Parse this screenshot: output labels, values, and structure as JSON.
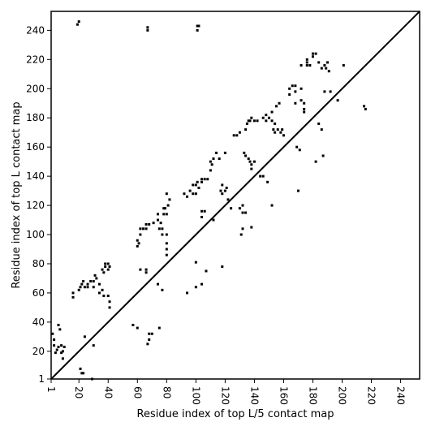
{
  "chart_data": {
    "type": "scatter",
    "title": "",
    "xlabel": "Residue index of top L/5 contact map",
    "ylabel": "Residue index of top L contact map",
    "xlim": [
      1,
      253
    ],
    "ylim": [
      1,
      253
    ],
    "xticks": [
      1,
      20,
      40,
      60,
      80,
      100,
      120,
      140,
      160,
      180,
      200,
      220,
      240
    ],
    "yticks": [
      1,
      20,
      40,
      60,
      80,
      100,
      120,
      140,
      160,
      180,
      200,
      220,
      240
    ],
    "diagonal": {
      "from": [
        1,
        1
      ],
      "to": [
        253,
        253
      ]
    },
    "grid": false,
    "series": [
      {
        "marker_color": "#000000",
        "points": [
          [
            19,
            244
          ],
          [
            20,
            246
          ],
          [
            67,
            240
          ],
          [
            67,
            242
          ],
          [
            101,
            240
          ],
          [
            101,
            243
          ],
          [
            102,
            243
          ],
          [
            21,
            8
          ],
          [
            22,
            5
          ],
          [
            23,
            5
          ],
          [
            29,
            1
          ],
          [
            2,
            32
          ],
          [
            3,
            24
          ],
          [
            3,
            28
          ],
          [
            4,
            19
          ],
          [
            5,
            21
          ],
          [
            6,
            23
          ],
          [
            6,
            38
          ],
          [
            7,
            35
          ],
          [
            8,
            24
          ],
          [
            8,
            19
          ],
          [
            9,
            15
          ],
          [
            9,
            20
          ],
          [
            10,
            23
          ],
          [
            16,
            57
          ],
          [
            16,
            60
          ],
          [
            20,
            62
          ],
          [
            21,
            64
          ],
          [
            22,
            66
          ],
          [
            23,
            68
          ],
          [
            24,
            64
          ],
          [
            26,
            66
          ],
          [
            26,
            64
          ],
          [
            28,
            68
          ],
          [
            30,
            64
          ],
          [
            30,
            68
          ],
          [
            31,
            72
          ],
          [
            32,
            70
          ],
          [
            34,
            66
          ],
          [
            34,
            60
          ],
          [
            36,
            62
          ],
          [
            37,
            58
          ],
          [
            36,
            76
          ],
          [
            37,
            74
          ],
          [
            38,
            78
          ],
          [
            38,
            80
          ],
          [
            40,
            76
          ],
          [
            40,
            80
          ],
          [
            41,
            78
          ],
          [
            40,
            58
          ],
          [
            41,
            54
          ],
          [
            41,
            50
          ],
          [
            24,
            30
          ],
          [
            30,
            24
          ],
          [
            57,
            38
          ],
          [
            60,
            36
          ],
          [
            67,
            25
          ],
          [
            68,
            28
          ],
          [
            68,
            32
          ],
          [
            70,
            32
          ],
          [
            75,
            36
          ],
          [
            60,
            92
          ],
          [
            60,
            96
          ],
          [
            61,
            94
          ],
          [
            62,
            100
          ],
          [
            62,
            104
          ],
          [
            64,
            104
          ],
          [
            66,
            104
          ],
          [
            66,
            107
          ],
          [
            68,
            107
          ],
          [
            71,
            108
          ],
          [
            74,
            110
          ],
          [
            74,
            114
          ],
          [
            75,
            104
          ],
          [
            76,
            108
          ],
          [
            77,
            104
          ],
          [
            77,
            100
          ],
          [
            78,
            114
          ],
          [
            78,
            118
          ],
          [
            79,
            118
          ],
          [
            80,
            114
          ],
          [
            80,
            90
          ],
          [
            80,
            86
          ],
          [
            80,
            94
          ],
          [
            80,
            100
          ],
          [
            81,
            120
          ],
          [
            82,
            124
          ],
          [
            80,
            128
          ],
          [
            62,
            76
          ],
          [
            66,
            76
          ],
          [
            66,
            74
          ],
          [
            77,
            62
          ],
          [
            74,
            66
          ],
          [
            92,
            128
          ],
          [
            94,
            126
          ],
          [
            96,
            130
          ],
          [
            98,
            128
          ],
          [
            98,
            134
          ],
          [
            100,
            134
          ],
          [
            101,
            136
          ],
          [
            102,
            132
          ],
          [
            100,
            128
          ],
          [
            104,
            136
          ],
          [
            104,
            138
          ],
          [
            106,
            138
          ],
          [
            108,
            138
          ],
          [
            110,
            144
          ],
          [
            110,
            150
          ],
          [
            111,
            148
          ],
          [
            112,
            152
          ],
          [
            114,
            156
          ],
          [
            116,
            152
          ],
          [
            117,
            130
          ],
          [
            118,
            128
          ],
          [
            118,
            134
          ],
          [
            120,
            130
          ],
          [
            120,
            156
          ],
          [
            121,
            132
          ],
          [
            122,
            124
          ],
          [
            104,
            116
          ],
          [
            104,
            112
          ],
          [
            106,
            116
          ],
          [
            112,
            110
          ],
          [
            100,
            81
          ],
          [
            100,
            64
          ],
          [
            104,
            66
          ],
          [
            107,
            75
          ],
          [
            118,
            78
          ],
          [
            94,
            60
          ],
          [
            124,
            118
          ],
          [
            126,
            168
          ],
          [
            128,
            168
          ],
          [
            130,
            170
          ],
          [
            130,
            118
          ],
          [
            131,
            100
          ],
          [
            132,
            104
          ],
          [
            132,
            120
          ],
          [
            132,
            115
          ],
          [
            134,
            115
          ],
          [
            133,
            156
          ],
          [
            134,
            154
          ],
          [
            134,
            172
          ],
          [
            135,
            176
          ],
          [
            136,
            178
          ],
          [
            137,
            178
          ],
          [
            136,
            152
          ],
          [
            137,
            150
          ],
          [
            138,
            148
          ],
          [
            138,
            145
          ],
          [
            140,
            150
          ],
          [
            138,
            105
          ],
          [
            138,
            180
          ],
          [
            140,
            178
          ],
          [
            142,
            178
          ],
          [
            144,
            140
          ],
          [
            146,
            140
          ],
          [
            146,
            180
          ],
          [
            148,
            182
          ],
          [
            148,
            178
          ],
          [
            149,
            136
          ],
          [
            150,
            180
          ],
          [
            152,
            184
          ],
          [
            152,
            178
          ],
          [
            153,
            172
          ],
          [
            154,
            170
          ],
          [
            154,
            176
          ],
          [
            155,
            188
          ],
          [
            156,
            172
          ],
          [
            157,
            190
          ],
          [
            158,
            170
          ],
          [
            159,
            172
          ],
          [
            160,
            168
          ],
          [
            152,
            120
          ],
          [
            164,
            196
          ],
          [
            164,
            200
          ],
          [
            166,
            202
          ],
          [
            168,
            190
          ],
          [
            168,
            198
          ],
          [
            168,
            202
          ],
          [
            169,
            160
          ],
          [
            170,
            130
          ],
          [
            171,
            158
          ],
          [
            172,
            192
          ],
          [
            172,
            200
          ],
          [
            172,
            216
          ],
          [
            174,
            186
          ],
          [
            174,
            190
          ],
          [
            174,
            184
          ],
          [
            176,
            216
          ],
          [
            176,
            218
          ],
          [
            176,
            220
          ],
          [
            178,
            216
          ],
          [
            180,
            222
          ],
          [
            180,
            224
          ],
          [
            182,
            224
          ],
          [
            182,
            150
          ],
          [
            184,
            176
          ],
          [
            184,
            218
          ],
          [
            186,
            214
          ],
          [
            186,
            172
          ],
          [
            187,
            154
          ],
          [
            188,
            198
          ],
          [
            188,
            216
          ],
          [
            189,
            214
          ],
          [
            190,
            218
          ],
          [
            191,
            212
          ],
          [
            192,
            198
          ],
          [
            197,
            192
          ],
          [
            201,
            216
          ],
          [
            215,
            188
          ],
          [
            216,
            186
          ]
        ]
      }
    ]
  }
}
